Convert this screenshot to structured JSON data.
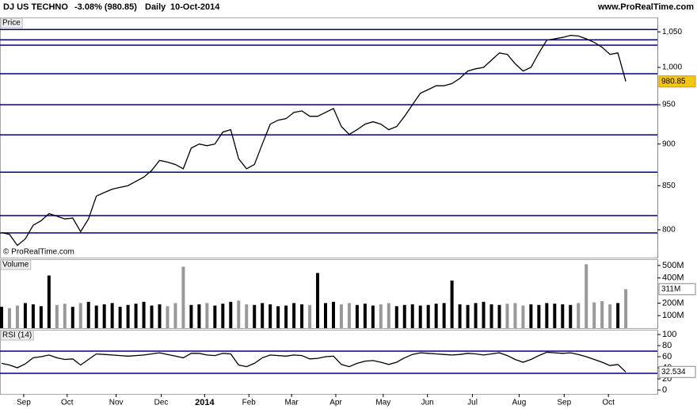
{
  "header": {
    "instrument": "DJ US TECHNO",
    "change": "-3.08% (980.85)",
    "period": "Daily",
    "date": "10-Oct-2014",
    "site": "www.ProRealTime.com",
    "copyright": "© ProRealTime.com"
  },
  "chart_data": [
    {
      "type": "line",
      "title": "Price",
      "log_scale": true,
      "color": "#000000",
      "ylim": [
        770,
        1071
      ],
      "yticks": [
        800,
        850,
        900,
        950,
        {
          "value": 1000,
          "label": "1,000"
        },
        {
          "value": 1050,
          "label": "1,050"
        }
      ],
      "levels": [
        1053.4,
        1038.6,
        1031,
        991.3,
        950,
        911.5,
        865.9,
        815.8,
        796.5
      ],
      "level_color": "#000080",
      "values": [
        797,
        795,
        783,
        790,
        805,
        810,
        818,
        815,
        812,
        813,
        798,
        812,
        838,
        842,
        846,
        848,
        850,
        855,
        860,
        868,
        880,
        878,
        875,
        870,
        895,
        900,
        898,
        900,
        915,
        918,
        882,
        870,
        875,
        900,
        925,
        930,
        932,
        940,
        942,
        935,
        935,
        940,
        945,
        922,
        912,
        918,
        925,
        928,
        925,
        918,
        922,
        935,
        950,
        965,
        970,
        975,
        975,
        978,
        985,
        995,
        998,
        1000,
        1010,
        1020,
        1018,
        1005,
        995,
        1000,
        1020,
        1038,
        1040,
        1042,
        1045,
        1044,
        1040,
        1035,
        1028,
        1018,
        1020,
        980.85
      ]
    },
    {
      "type": "bar",
      "title": "Volume",
      "ylim": [
        0,
        550
      ],
      "yticks": [
        {
          "value": 100,
          "label": "100M"
        },
        {
          "value": 200,
          "label": "200M"
        },
        {
          "value": 400,
          "label": "400M"
        },
        {
          "value": 500,
          "label": "500M"
        }
      ],
      "values": [
        170,
        160,
        180,
        200,
        190,
        175,
        420,
        185,
        195,
        170,
        200,
        210,
        180,
        190,
        200,
        170,
        185,
        195,
        210,
        180,
        190,
        175,
        200,
        490,
        185,
        190,
        200,
        180,
        195,
        210,
        220,
        190,
        185,
        200,
        190,
        175,
        180,
        200,
        190,
        185,
        440,
        200,
        210,
        190,
        200,
        185,
        195,
        180,
        190,
        200,
        175,
        185,
        190,
        180,
        185,
        195,
        200,
        380,
        190,
        185,
        200,
        210,
        190,
        185,
        195,
        200,
        180,
        190,
        185,
        200,
        195,
        190,
        185,
        200,
        510,
        205,
        215,
        190,
        200,
        311
      ],
      "value_labels": [
        null,
        null,
        null,
        null,
        null,
        null,
        null,
        null,
        null,
        null,
        null,
        null,
        null,
        null,
        null,
        null,
        null,
        null,
        null,
        null,
        null,
        null,
        null,
        null,
        null,
        null,
        null,
        null,
        null,
        null,
        null,
        null,
        null,
        null,
        null,
        null,
        null,
        null,
        null,
        null,
        null,
        null,
        null,
        null,
        null,
        null,
        null,
        null,
        null,
        null,
        null,
        null,
        null,
        null,
        null,
        null,
        null,
        null,
        null,
        null,
        null,
        null,
        null,
        null,
        null,
        null,
        null,
        null,
        null,
        null,
        null,
        null,
        null,
        null,
        null,
        null,
        null,
        null,
        null,
        "311M"
      ]
    },
    {
      "type": "line",
      "title": "RSI (14)",
      "color": "#000000",
      "ylim": [
        -7.1,
        108.6
      ],
      "yticks": [
        0,
        20,
        40,
        60,
        80,
        100
      ],
      "levels": [
        30,
        70
      ],
      "level_color": "#000080",
      "xlim": [
        -0.2,
        83
      ],
      "xticks": [
        {
          "value": 2.8,
          "label": "Sep"
        },
        {
          "value": 8.3,
          "label": "Oct"
        },
        {
          "value": 14.5,
          "label": "Nov"
        },
        {
          "value": 20.2,
          "label": "Dec"
        },
        {
          "value": 25.7,
          "label": "2014"
        },
        {
          "value": 31.3,
          "label": "Feb"
        },
        {
          "value": 36.7,
          "label": "Mar"
        },
        {
          "value": 42.3,
          "label": "Apr"
        },
        {
          "value": 48.3,
          "label": "May"
        },
        {
          "value": 53.9,
          "label": "Jun"
        },
        {
          "value": 59.6,
          "label": "Jul"
        },
        {
          "value": 65.5,
          "label": "Aug"
        },
        {
          "value": 71.2,
          "label": "Sep"
        },
        {
          "value": 76.8,
          "label": "Oct"
        }
      ],
      "values": [
        48,
        45,
        40,
        47,
        58,
        60,
        63,
        58,
        55,
        56,
        45,
        55,
        65,
        64,
        63,
        62,
        61,
        62,
        63,
        65,
        67,
        64,
        61,
        58,
        66,
        66,
        63,
        62,
        66,
        65,
        45,
        42,
        48,
        58,
        63,
        62,
        61,
        63,
        62,
        56,
        57,
        60,
        61,
        46,
        42,
        48,
        52,
        53,
        50,
        46,
        50,
        58,
        64,
        67,
        66,
        65,
        64,
        63,
        64,
        66,
        65,
        63,
        65,
        67,
        62,
        55,
        50,
        55,
        62,
        68,
        67,
        66,
        67,
        64,
        60,
        55,
        50,
        44,
        46,
        32.534
      ]
    }
  ]
}
